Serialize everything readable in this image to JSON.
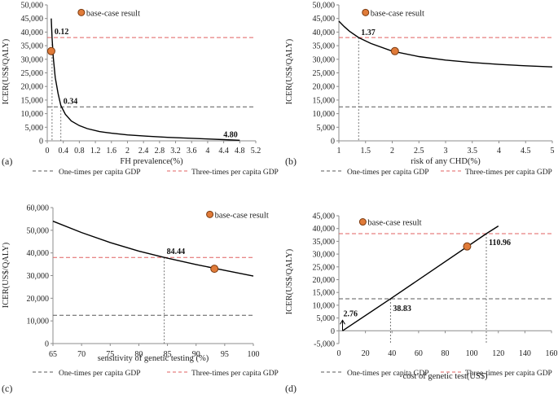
{
  "colors": {
    "axis": "#8c8c8c",
    "curve": "#000000",
    "one_gdp_line": "#595959",
    "three_gdp_line": "#e06060",
    "marker_fill": "#e07b39",
    "marker_stroke": "#7a3a10",
    "guide": "#555555"
  },
  "chart_data": [
    {
      "type": "line",
      "panel_label": "(a)",
      "title": "",
      "xlabel": "FH prevalence(%)",
      "ylabel": "ICER(US$/QALY)",
      "xlim": [
        0,
        5.2
      ],
      "ylim": [
        0,
        50000
      ],
      "xticks": [
        0,
        0.4,
        0.8,
        1.2,
        1.6,
        2,
        2.4,
        2.8,
        3.2,
        3.6,
        4,
        4.4,
        4.8,
        5.2
      ],
      "xtick_labels": [
        "0",
        "0.4",
        "0.8",
        "1.2",
        "1.6",
        "2",
        "2.4",
        "2.8",
        "3.2",
        "3.6",
        "4",
        "4.4",
        "4.8",
        "5.2"
      ],
      "yticks": [
        0,
        5000,
        10000,
        15000,
        20000,
        25000,
        30000,
        35000,
        40000,
        45000,
        50000
      ],
      "ytick_labels": [
        "0",
        "5,000",
        "10,000",
        "15,000",
        "20,000",
        "25,000",
        "30,000",
        "35,000",
        "40,000",
        "45,000",
        "50,000"
      ],
      "series": [
        {
          "name": "ICER",
          "x": [
            0.1,
            0.12,
            0.15,
            0.2,
            0.27,
            0.34,
            0.45,
            0.6,
            0.8,
            1.0,
            1.3,
            1.6,
            2.0,
            2.5,
            3.0,
            3.5,
            4.0,
            4.4,
            4.8
          ],
          "y": [
            45000,
            38000,
            30700,
            23300,
            17400,
            13000,
            9800,
            7300,
            5600,
            4500,
            3400,
            2800,
            2200,
            1700,
            1300,
            1000,
            700,
            450,
            200
          ]
        }
      ],
      "thresholds": [
        {
          "name": "One-times per capita GDP",
          "value": 12500,
          "style": "one"
        },
        {
          "name": "Three-times per capita GDP",
          "value": 38000,
          "style": "three"
        }
      ],
      "base_case": {
        "label": "base-case result",
        "x": 0.1,
        "y": 33000,
        "legend_x": 0.85,
        "legend_y": 47200
      },
      "annotations": [
        {
          "text": "0.12",
          "x": 0.12,
          "y": 38000,
          "dx": 3,
          "dy": -4
        },
        {
          "text": "0.34",
          "x": 0.34,
          "y": 12500,
          "dx": 3,
          "dy": -4
        },
        {
          "text": "4.80",
          "x": 4.8,
          "y": 200,
          "dx": -20,
          "dy": -4
        }
      ],
      "vguides": [
        {
          "x": 0.12,
          "y": 38000
        },
        {
          "x": 0.34,
          "y": 12500
        }
      ],
      "legend": [
        "One-times per capita GDP",
        "Three-times per capita GDP"
      ]
    },
    {
      "type": "line",
      "panel_label": "(b)",
      "title": "",
      "xlabel": "risk of any CHD(%)",
      "ylabel": "ICER(US$/QALY)",
      "xlim": [
        1,
        5
      ],
      "ylim": [
        0,
        50000
      ],
      "xticks": [
        1,
        1.5,
        2,
        2.5,
        3,
        3.5,
        4,
        4.5,
        5
      ],
      "xtick_labels": [
        "1",
        "1.5",
        "2",
        "2.5",
        "3",
        "3.5",
        "4",
        "4.5",
        "5"
      ],
      "yticks": [
        0,
        5000,
        10000,
        15000,
        20000,
        25000,
        30000,
        35000,
        40000,
        45000,
        50000
      ],
      "ytick_labels": [
        "0",
        "5,000",
        "10,000",
        "15,000",
        "20,000",
        "25,000",
        "30,000",
        "35,000",
        "40,000",
        "45,000",
        "50,000"
      ],
      "series": [
        {
          "name": "ICER",
          "x": [
            1.0,
            1.1,
            1.2,
            1.37,
            1.6,
            2.0,
            2.5,
            3.0,
            3.5,
            4.0,
            4.5,
            5.0
          ],
          "y": [
            44000,
            42000,
            40300,
            38000,
            35800,
            33000,
            31000,
            29700,
            28800,
            28100,
            27600,
            27200
          ]
        }
      ],
      "thresholds": [
        {
          "name": "One-times per capita GDP",
          "value": 12500,
          "style": "one"
        },
        {
          "name": "Three-times per capita GDP",
          "value": 38000,
          "style": "three"
        }
      ],
      "base_case": {
        "label": "base-case result",
        "x": 2.05,
        "y": 33000,
        "legend_x": 1.5,
        "legend_y": 47200
      },
      "annotations": [
        {
          "text": "1.37",
          "x": 1.37,
          "y": 38000,
          "dx": 3,
          "dy": -3
        }
      ],
      "vguides": [
        {
          "x": 1.37,
          "y": 38000
        }
      ],
      "legend": [
        "One-times per capita GDP",
        "Three-times per capita GDP"
      ]
    },
    {
      "type": "line",
      "panel_label": "(c)",
      "title": "",
      "xlabel": "sensitivity of genetic testing (%)",
      "ylabel": "ICER(US$/QALY)",
      "xlim": [
        65,
        100
      ],
      "ylim": [
        0,
        60000
      ],
      "xticks": [
        65,
        70,
        75,
        80,
        85,
        90,
        95,
        100
      ],
      "xtick_labels": [
        "65",
        "70",
        "75",
        "80",
        "85",
        "90",
        "95",
        "100"
      ],
      "yticks": [
        0,
        10000,
        20000,
        30000,
        40000,
        50000,
        60000
      ],
      "ytick_labels": [
        "0",
        "10,000",
        "20,000",
        "30,000",
        "40,000",
        "50,000",
        "60,000"
      ],
      "series": [
        {
          "name": "ICER",
          "x": [
            65,
            70,
            75,
            80,
            84.44,
            90,
            95,
            100
          ],
          "y": [
            54000,
            49000,
            44600,
            40800,
            38000,
            34900,
            32300,
            29800
          ]
        }
      ],
      "thresholds": [
        {
          "name": "One-times per capita GDP",
          "value": 12500,
          "style": "one"
        },
        {
          "name": "Three-times per capita GDP",
          "value": 38000,
          "style": "three"
        }
      ],
      "base_case": {
        "label": "base-case result",
        "x": 93.2,
        "y": 33000,
        "legend_x": 92.4,
        "legend_y": 57000
      },
      "annotations": [
        {
          "text": "84.44",
          "x": 84.44,
          "y": 38000,
          "dx": 3,
          "dy": -4
        }
      ],
      "vguides": [
        {
          "x": 84.44,
          "y": 38000
        }
      ],
      "legend": [
        "One-times per capita GDP",
        "Three-times per capita GDP"
      ]
    },
    {
      "type": "line",
      "panel_label": "(d)",
      "title": "",
      "xlabel": "cost of genetic test(US$)",
      "ylabel": "ICER(US$/QALY)",
      "xlim": [
        0,
        160
      ],
      "ylim": [
        -5000,
        45000
      ],
      "xticks": [
        0,
        20,
        40,
        60,
        80,
        100,
        120,
        140,
        160
      ],
      "xtick_labels": [
        "0",
        "20",
        "40",
        "60",
        "80",
        "100",
        "120",
        "140",
        "160"
      ],
      "yticks": [
        -5000,
        0,
        5000,
        10000,
        15000,
        20000,
        25000,
        30000,
        35000,
        40000,
        45000
      ],
      "ytick_labels": [
        "-5,000",
        "0",
        "5,000",
        "10,000",
        "15,000",
        "20,000",
        "25,000",
        "30,000",
        "35,000",
        "40,000",
        "45,000"
      ],
      "series": [
        {
          "name": "ICER",
          "x": [
            2.76,
            38.83,
            110.96,
            120
          ],
          "y": [
            0,
            12500,
            38000,
            41000
          ]
        }
      ],
      "thresholds": [
        {
          "name": "One-times per capita GDP",
          "value": 12500,
          "style": "one"
        },
        {
          "name": "Three-times per capita GDP",
          "value": 38000,
          "style": "three"
        }
      ],
      "base_case": {
        "label": "base-case result",
        "x": 96.5,
        "y": 33000,
        "legend_x": 18,
        "legend_y": 42600
      },
      "annotations": [
        {
          "text": "2.76",
          "x": 2.76,
          "y": 0,
          "dx": 1,
          "dy": -18
        },
        {
          "text": "38.83",
          "x": 38.83,
          "y": 12500,
          "dx": 3,
          "dy": 15
        },
        {
          "text": "110.96",
          "x": 110.96,
          "y": 38000,
          "dx": 3,
          "dy": 14
        }
      ],
      "vguides": [
        {
          "x": 38.83,
          "y": 12500
        },
        {
          "x": 110.96,
          "y": 38000
        }
      ],
      "arrow": {
        "x": 2.76,
        "y": 0
      },
      "legend": [
        "One-times per capita GDP",
        "Three-times per capita GDP"
      ]
    }
  ]
}
